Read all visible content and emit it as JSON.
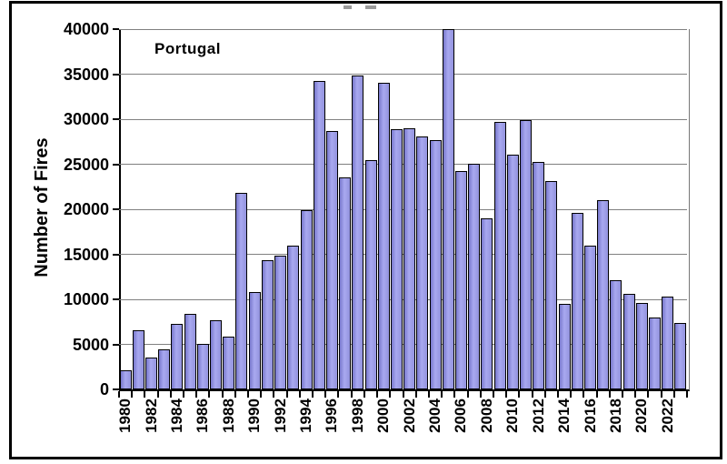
{
  "chart_data": {
    "type": "bar",
    "annotation": "Portugal",
    "ylabel": "Number of Fires",
    "xlabel": "",
    "ylim": [
      0,
      40000
    ],
    "ytick_step": 5000,
    "y_tick_labels": [
      "40000",
      "35000",
      "30000",
      "25000",
      "20000",
      "15000",
      "10000",
      "5000",
      "0"
    ],
    "x_tick_labels_shown": [
      "1980",
      "1982",
      "1984",
      "1986",
      "1988",
      "1990",
      "1992",
      "1994",
      "1996",
      "1998",
      "2000",
      "2002",
      "2004",
      "2006",
      "2008",
      "2010",
      "2012",
      "2014",
      "2016",
      "2018",
      "2020",
      "2022"
    ],
    "grid": "horizontal",
    "legend": "none",
    "bar_color": "#9999e6",
    "bar_edge_color": "#000000",
    "gridline_color": "#808080",
    "categories": [
      "1980",
      "1981",
      "1982",
      "1983",
      "1984",
      "1985",
      "1986",
      "1987",
      "1988",
      "1989",
      "1990",
      "1991",
      "1992",
      "1993",
      "1994",
      "1995",
      "1996",
      "1997",
      "1998",
      "1999",
      "2000",
      "2001",
      "2002",
      "2003",
      "2004",
      "2005",
      "2006",
      "2007",
      "2008",
      "2009",
      "2010",
      "2011",
      "2012",
      "2013",
      "2014",
      "2015",
      "2016",
      "2017",
      "2018",
      "2019",
      "2020",
      "2021",
      "2022",
      "2023"
    ],
    "values": [
      2100,
      6600,
      3500,
      4400,
      7300,
      8400,
      5100,
      7700,
      5900,
      21800,
      10800,
      14300,
      14800,
      16000,
      19900,
      34200,
      28700,
      23500,
      34800,
      25500,
      34000,
      28900,
      29000,
      28100,
      27700,
      40000,
      24200,
      25000,
      19000,
      29700,
      26100,
      29900,
      25300,
      23100,
      9500,
      19600,
      16000,
      21000,
      12100,
      10600,
      9600,
      8000,
      10300,
      7400
    ]
  }
}
